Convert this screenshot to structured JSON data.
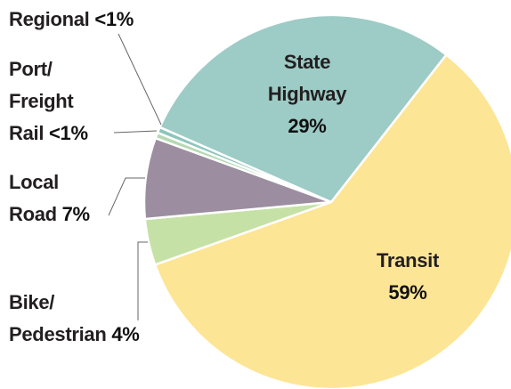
{
  "chart_data": {
    "type": "pie",
    "categories": [
      "Transit",
      "Bike/\nPedestrian",
      "Local\nRoad",
      "Port/\nFreight\nRail",
      "Regional",
      "State\nHighway"
    ],
    "values": [
      59,
      4,
      7,
      0.5,
      0.5,
      29
    ],
    "value_labels": [
      "59%",
      "4%",
      "7%",
      "<1%",
      "<1%",
      "29%"
    ],
    "colors": [
      "#fde596",
      "#c6e1a6",
      "#9c8ea0",
      "#b5d9b3",
      "#8dc5bd",
      "#9dcbc6"
    ]
  }
}
